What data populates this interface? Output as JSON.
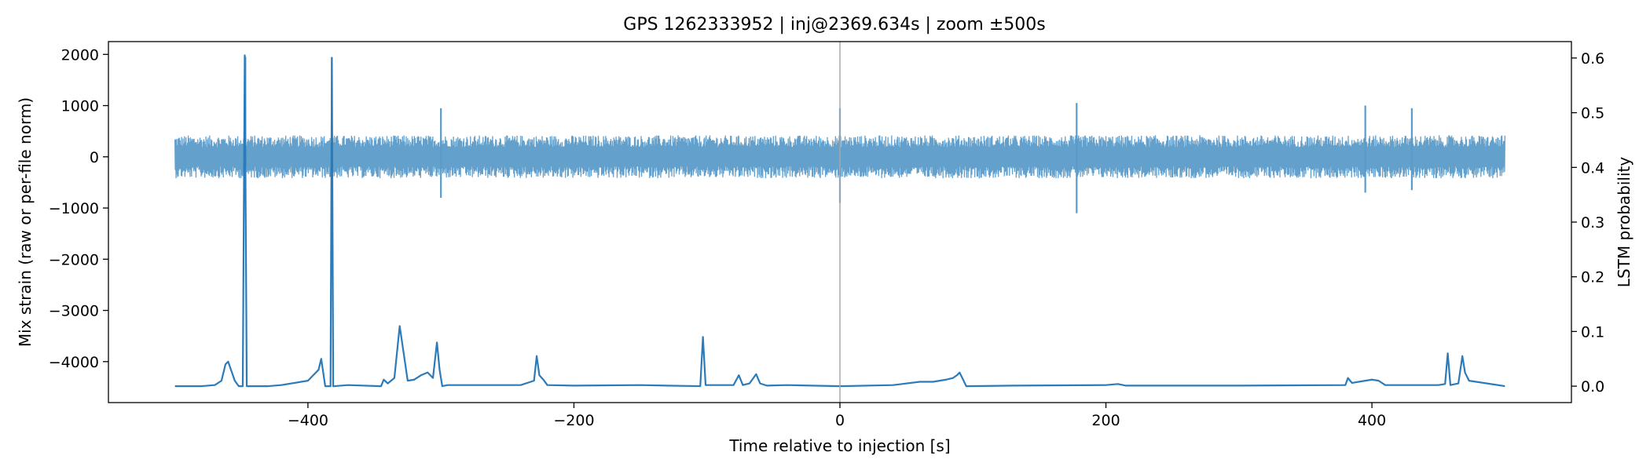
{
  "chart_data": {
    "type": "line",
    "title": "GPS 1262333952 | inj@2369.634s | zoom ±500s",
    "xlabel": "Time relative to injection [s]",
    "ylabel_left": "Mix strain (raw or per-file norm)",
    "ylabel_right": "LSTM probability",
    "xlim": [
      -550,
      550
    ],
    "ylim_left": [
      -4800,
      2250
    ],
    "ylim_right": [
      -0.03,
      0.63
    ],
    "x_ticks": [
      -400,
      -200,
      0,
      200,
      400
    ],
    "x_tick_labels": [
      "−400",
      "−200",
      "0",
      "200",
      "400"
    ],
    "y_left_ticks": [
      2000,
      1000,
      0,
      -1000,
      -2000,
      -3000,
      -4000
    ],
    "y_left_tick_labels": [
      "2000",
      "1000",
      "0",
      "−1000",
      "−2000",
      "−3000",
      "−4000"
    ],
    "y_right_ticks": [
      0.6,
      0.5,
      0.4,
      0.3,
      0.2,
      0.1,
      0.0
    ],
    "y_right_tick_labels": [
      "0.6",
      "0.5",
      "0.4",
      "0.3",
      "0.2",
      "0.1",
      "0.0"
    ],
    "grid": false,
    "legend": "none",
    "injection_marker": {
      "x": 0,
      "color": "#aaaaaa"
    },
    "colors": {
      "strain": "#5b9bc9",
      "probability": "#2b7bba"
    },
    "strain_series": {
      "x_range": [
        -500,
        500
      ],
      "baseline_amplitude": 420,
      "bursts": [
        {
          "x": -447,
          "ymin": -800,
          "ymax": 1950
        },
        {
          "x": -382,
          "ymin": -1600,
          "ymax": 1950
        },
        {
          "x": -300,
          "ymin": -800,
          "ymax": 950
        },
        {
          "x": 0,
          "ymin": -900,
          "ymax": 950
        },
        {
          "x": 178,
          "ymin": -1100,
          "ymax": 1050
        },
        {
          "x": 395,
          "ymin": -700,
          "ymax": 1000
        },
        {
          "x": 430,
          "ymin": -650,
          "ymax": 950
        }
      ]
    },
    "probability_series": {
      "x": [
        -500,
        -480,
        -470,
        -465,
        -462,
        -460,
        -455,
        -452,
        -449,
        -447.5,
        -446,
        -444,
        -430,
        -420,
        -400,
        -392,
        -390,
        -387,
        -385,
        -383,
        -382,
        -381,
        -380,
        -370,
        -345,
        -343,
        -340,
        -335,
        -331,
        -328,
        -325,
        -320,
        -315,
        -310,
        -306,
        -303,
        -301,
        -299,
        -295,
        -280,
        -240,
        -230,
        -228,
        -226,
        -223,
        -220,
        -200,
        -150,
        -130,
        -105,
        -103,
        -101,
        -90,
        -80,
        -76,
        -73,
        -68,
        -63,
        -60,
        -55,
        -40,
        0,
        40,
        60,
        70,
        80,
        85,
        88,
        90,
        95,
        130,
        200,
        209,
        215,
        300,
        380,
        382,
        385,
        395,
        400,
        405,
        410,
        450,
        455,
        457,
        459,
        465,
        468,
        470,
        473,
        500
      ],
      "y": [
        0.0,
        0.0,
        0.002,
        0.01,
        0.04,
        0.045,
        0.01,
        0.0,
        0.0,
        0.605,
        0.0,
        0.0,
        0.0,
        0.002,
        0.01,
        0.03,
        0.05,
        0.0,
        0.0,
        0.0,
        0.6,
        0.0,
        0.0,
        0.002,
        0.0,
        0.012,
        0.005,
        0.015,
        0.11,
        0.06,
        0.01,
        0.012,
        0.02,
        0.025,
        0.015,
        0.08,
        0.03,
        0.0,
        0.002,
        0.002,
        0.002,
        0.01,
        0.055,
        0.02,
        0.012,
        0.002,
        0.001,
        0.002,
        0.001,
        0.0,
        0.09,
        0.002,
        0.002,
        0.002,
        0.02,
        0.002,
        0.005,
        0.022,
        0.005,
        0.001,
        0.002,
        0.0,
        0.002,
        0.008,
        0.008,
        0.012,
        0.015,
        0.02,
        0.025,
        0.0,
        0.001,
        0.002,
        0.004,
        0.001,
        0.001,
        0.002,
        0.015,
        0.006,
        0.01,
        0.012,
        0.01,
        0.002,
        0.002,
        0.004,
        0.06,
        0.002,
        0.005,
        0.055,
        0.025,
        0.01,
        0.0
      ]
    }
  }
}
